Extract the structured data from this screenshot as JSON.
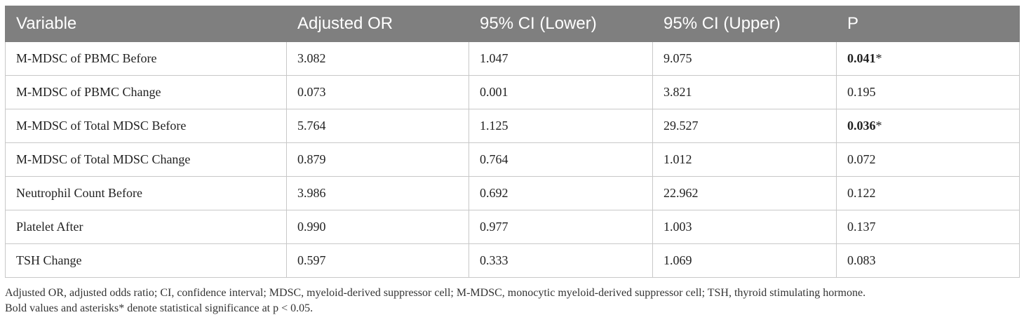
{
  "table": {
    "headers": [
      "Variable",
      "Adjusted OR",
      "95% CI (Lower)",
      "95% CI (Upper)",
      "P"
    ],
    "rows": [
      {
        "variable": "M-MDSC of PBMC Before",
        "or": "3.082",
        "lower": "1.047",
        "upper": "9.075",
        "p": "0.041",
        "p_mark": "*",
        "significant": true
      },
      {
        "variable": "M-MDSC of PBMC Change",
        "or": "0.073",
        "lower": "0.001",
        "upper": "3.821",
        "p": "0.195",
        "p_mark": "",
        "significant": false
      },
      {
        "variable": "M-MDSC of Total MDSC Before",
        "or": "5.764",
        "lower": "1.125",
        "upper": "29.527",
        "p": "0.036",
        "p_mark": "*",
        "significant": true
      },
      {
        "variable": "M-MDSC of Total MDSC Change",
        "or": "0.879",
        "lower": "0.764",
        "upper": "1.012",
        "p": "0.072",
        "p_mark": "",
        "significant": false
      },
      {
        "variable": "Neutrophil Count Before",
        "or": "3.986",
        "lower": "0.692",
        "upper": "22.962",
        "p": "0.122",
        "p_mark": "",
        "significant": false
      },
      {
        "variable": "Platelet After",
        "or": "0.990",
        "lower": "0.977",
        "upper": "1.003",
        "p": "0.137",
        "p_mark": "",
        "significant": false
      },
      {
        "variable": "TSH Change",
        "or": "0.597",
        "lower": "0.333",
        "upper": "1.069",
        "p": "0.083",
        "p_mark": "",
        "significant": false
      }
    ]
  },
  "footnote": {
    "line1": "Adjusted OR, adjusted odds ratio; CI, confidence interval; MDSC, myeloid-derived suppressor cell; M-MDSC, monocytic myeloid-derived suppressor cell; TSH, thyroid stimulating hormone.",
    "line2": "Bold values and asterisks* denote statistical significance at p < 0.05."
  },
  "colors": {
    "header_background": "#7f7f7f",
    "header_text": "#ffffff",
    "grid_border": "#c8c8c8"
  }
}
